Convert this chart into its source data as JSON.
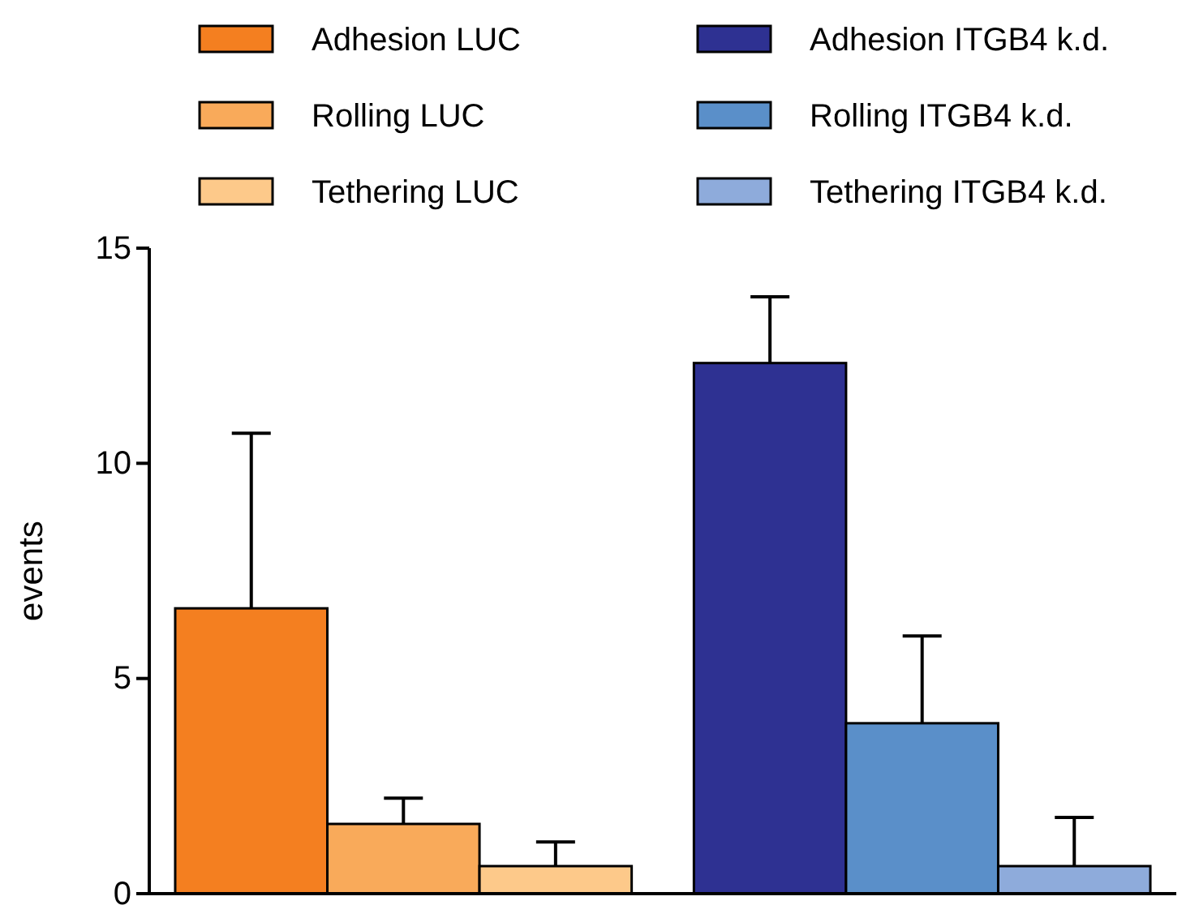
{
  "chart_data": {
    "type": "bar",
    "ylabel": "events",
    "categories": [
      null,
      null
    ],
    "ylim": [
      0,
      15
    ],
    "yticks": [
      0,
      5,
      10,
      15
    ],
    "legend": "top",
    "grid": false,
    "series": [
      {
        "name": "Adhesion LUC",
        "color": "#f47f20",
        "values": [
          6.63,
          null
        ],
        "errors": [
          4.07,
          null
        ]
      },
      {
        "name": "Rolling LUC",
        "color": "#f9aa5a",
        "values": [
          1.62,
          null
        ],
        "errors": [
          0.6,
          null
        ]
      },
      {
        "name": "Tethering LUC",
        "color": "#fdc98a",
        "values": [
          0.64,
          null
        ],
        "errors": [
          0.56,
          null
        ]
      },
      {
        "name": "Adhesion ITGB4 k.d.",
        "color": "#2e3192",
        "values": [
          null,
          12.33
        ],
        "errors": [
          null,
          1.54
        ]
      },
      {
        "name": "Rolling ITGB4 k.d.",
        "color": "#5a8fc9",
        "values": [
          null,
          3.96
        ],
        "errors": [
          null,
          2.03
        ]
      },
      {
        "name": "Tethering ITGB4 k.d.",
        "color": "#8eabdb",
        "values": [
          null,
          0.64
        ],
        "errors": [
          null,
          1.13
        ]
      }
    ]
  }
}
